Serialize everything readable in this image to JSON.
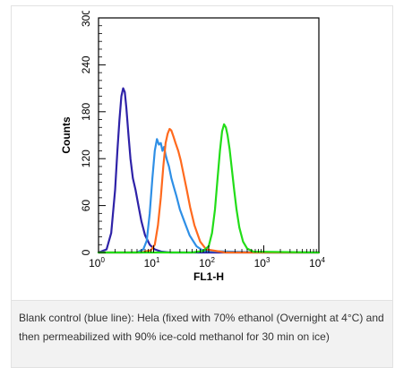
{
  "chart_data": {
    "type": "line",
    "title": "",
    "xlabel": "FL1-H",
    "ylabel": "Counts",
    "xscale": "log",
    "xlim": [
      1,
      10000
    ],
    "ylim": [
      0,
      300
    ],
    "x_ticks": [
      {
        "base": "10",
        "exp": "0"
      },
      {
        "base": "10",
        "exp": "1"
      },
      {
        "base": "10",
        "exp": "2"
      },
      {
        "base": "10",
        "exp": "3"
      },
      {
        "base": "10",
        "exp": "4"
      }
    ],
    "y_ticks": [
      "0",
      "60",
      "120",
      "180",
      "240",
      "300"
    ],
    "y_tick_values": [
      0,
      60,
      120,
      180,
      240,
      300
    ],
    "grid": false,
    "series": [
      {
        "color": "#2e22a8",
        "x": [
          1.0,
          1.4,
          1.7,
          2.0,
          2.2,
          2.4,
          2.6,
          2.8,
          3.0,
          3.2,
          3.5,
          3.8,
          4.2,
          4.7,
          5.3,
          6.0,
          7.0,
          8.5,
          10.5,
          14,
          20,
          40,
          100,
          500,
          10000
        ],
        "y": [
          0,
          4,
          25,
          80,
          130,
          170,
          200,
          210,
          205,
          185,
          150,
          120,
          95,
          80,
          60,
          40,
          22,
          10,
          4,
          1,
          0,
          0,
          0,
          0,
          0
        ]
      },
      {
        "color": "#2e8fe6",
        "x": [
          1.0,
          5.0,
          6.5,
          7.5,
          8.5,
          9.5,
          10.5,
          11.5,
          12.5,
          13.5,
          14.5,
          15.5,
          16.5,
          17.5,
          19,
          21,
          23,
          26,
          30,
          36,
          45,
          60,
          80,
          1000,
          10000
        ],
        "y": [
          0,
          0,
          4,
          15,
          50,
          95,
          130,
          145,
          138,
          140,
          130,
          135,
          125,
          118,
          110,
          95,
          85,
          72,
          55,
          40,
          22,
          8,
          2,
          0,
          0
        ]
      },
      {
        "color": "#ff6a1e",
        "x": [
          1.0,
          6.0,
          9.0,
          10.5,
          12.0,
          13.5,
          15.0,
          16.5,
          18.0,
          19.5,
          21.0,
          23.0,
          25.0,
          28.0,
          31.0,
          35.0,
          40.0,
          46.0,
          55.0,
          70.0,
          90.0,
          200,
          10000
        ],
        "y": [
          0,
          0,
          3,
          10,
          35,
          70,
          110,
          140,
          152,
          158,
          156,
          148,
          140,
          130,
          118,
          100,
          80,
          58,
          35,
          14,
          4,
          0,
          0
        ]
      },
      {
        "color": "#22dd18",
        "x": [
          1.0,
          50.0,
          80.0,
          100,
          115,
          130,
          145,
          160,
          175,
          190,
          205,
          220,
          240,
          260,
          290,
          320,
          360,
          420,
          500,
          650,
          10000
        ],
        "y": [
          0,
          0,
          2,
          8,
          25,
          55,
          95,
          130,
          155,
          164,
          160,
          150,
          132,
          110,
          80,
          55,
          32,
          14,
          5,
          1,
          0
        ]
      }
    ]
  },
  "caption": {
    "line1": "Blank control (blue line): Hela (fixed with 70% ethanol (Overnight at 4°C) and",
    "line2": "then permeabilized with 90% ice-cold methanol for 30 min on ice)"
  }
}
